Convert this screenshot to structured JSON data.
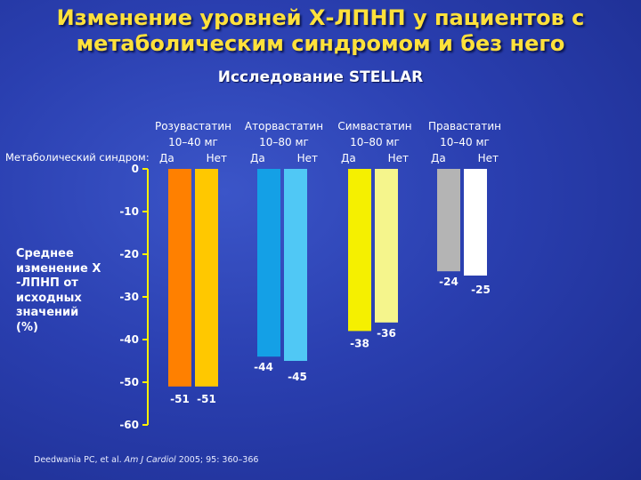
{
  "title_line1": "Изменение уровней Х-ЛПНП у пациентов с",
  "title_line2": "метаболическим синдромом и без него",
  "subtitle": "Исследование STELLAR",
  "metabolic_label": "Метаболический синдром:",
  "ylabel_lines": [
    "Среднее",
    "изменение Х",
    "-ЛПНП от",
    "исходных",
    "значений",
    "(%)"
  ],
  "drugs": [
    {
      "name": "Розувастатин",
      "dose": "10–40 мг",
      "yes": "Да",
      "no": "Нет"
    },
    {
      "name": "Аторвастатин",
      "dose": "10–80 мг",
      "yes": "Да",
      "no": "Нет"
    },
    {
      "name": "Симвастатин",
      "dose": "10–80 мг",
      "yes": "Да",
      "no": "Нет"
    },
    {
      "name": "Правастатин",
      "dose": "10–40 мг",
      "yes": "Да",
      "no": "Нет"
    }
  ],
  "citation": {
    "prefix": "Deedwania PC, et al. ",
    "journal": "Am J Cardiol",
    "suffix": " 2005; 95: 360–366"
  },
  "chart_data": {
    "type": "bar",
    "categories": [
      "Розувастатин 10–40 мг",
      "Аторвастатин 10–80 мг",
      "Симвастатин 10–80 мг",
      "Правастатин 10–40 мг"
    ],
    "series": [
      {
        "name": "Да",
        "values": [
          -51,
          -44,
          -38,
          -24
        ]
      },
      {
        "name": "Нет",
        "values": [
          -51,
          -45,
          -36,
          -25
        ]
      }
    ],
    "value_labels": [
      [
        "-51",
        "-51"
      ],
      [
        "-44",
        "-45"
      ],
      [
        "-38",
        "-36"
      ],
      [
        "-24",
        "-25"
      ]
    ],
    "ylim": [
      -60,
      0
    ],
    "yticks": [
      0,
      -10,
      -20,
      -30,
      -40,
      -50,
      -60
    ],
    "ytick_labels": [
      "0",
      "-10",
      "-20",
      "-30",
      "-40",
      "-50",
      "-60"
    ],
    "colors": [
      [
        "#ff8000",
        "#ffc800"
      ],
      [
        "#14a0e6",
        "#50c8f5"
      ],
      [
        "#f5f000",
        "#f5f58c"
      ],
      [
        "#b4b4b4",
        "#ffffff"
      ]
    ],
    "axis_color": "#fff000",
    "grid": false,
    "legend": "none"
  }
}
